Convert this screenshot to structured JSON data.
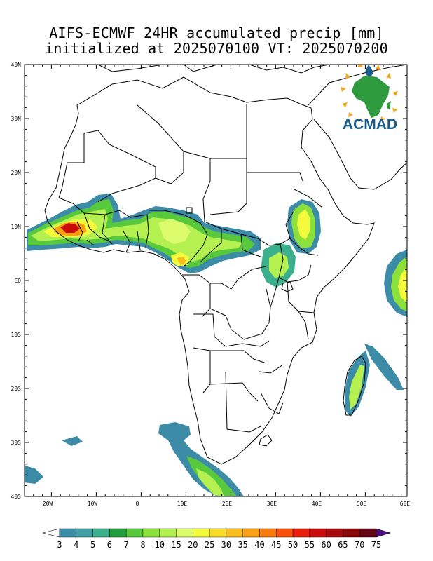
{
  "title": {
    "line1": "AIFS-ECMWF 24HR accumulated precip [mm]",
    "line2": "initialized at 2025070100 VT: 2025070200"
  },
  "logo": {
    "text": "ACMAD",
    "icon": "africa-sun-logo-icon"
  },
  "lat_labels": [
    "40N",
    "30N",
    "20N",
    "10N",
    "EQ",
    "10S",
    "20S",
    "30S",
    "40S"
  ],
  "lon_labels": [
    "20W",
    "10W",
    "0",
    "10E",
    "20E",
    "30E",
    "40E",
    "50E",
    "60E"
  ],
  "colorbar": {
    "values": [
      "3",
      "4",
      "5",
      "6",
      "7",
      "8",
      "10",
      "15",
      "20",
      "25",
      "30",
      "35",
      "40",
      "45",
      "50",
      "55",
      "60",
      "65",
      "70",
      "75"
    ],
    "colors": [
      "#ffffff",
      "#3c8ca8",
      "#40a0a4",
      "#3cb08c",
      "#1e9e3c",
      "#58c83c",
      "#8ce03c",
      "#b4f050",
      "#dcfc6e",
      "#f4fa3c",
      "#f8dc28",
      "#f8be1e",
      "#f8a014",
      "#f87d0e",
      "#f85008",
      "#e81c0a",
      "#c80c0c",
      "#a80a0c",
      "#880808",
      "#640614",
      "#501080"
    ]
  }
}
